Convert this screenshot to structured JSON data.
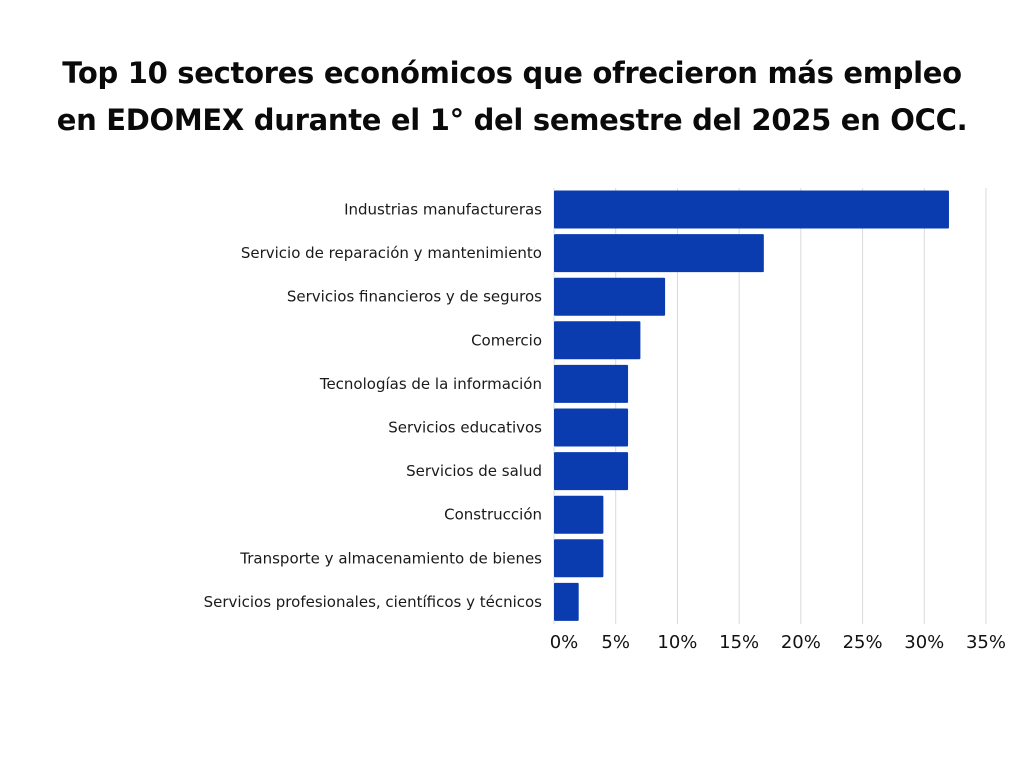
{
  "chart_data": {
    "type": "bar",
    "orientation": "horizontal",
    "title": "Top 10 sectores económicos que ofrecieron más empleo en EDOMEX durante el 1° del semestre del 2025 en OCC.",
    "title_lines": [
      "Top 10 sectores económicos que ofrecieron más empleo",
      "en EDOMEX durante el 1° del semestre del 2025 en OCC."
    ],
    "xlabel": "",
    "ylabel": "",
    "categories": [
      "Industrias manufactureras",
      "Servicio de reparación y mantenimiento",
      "Servicios financieros y de seguros",
      "Comercio",
      "Tecnologías de la información",
      "Servicios educativos",
      "Servicios de salud",
      "Construcción",
      "Transporte y almacenamiento de bienes",
      "Servicios profesionales, científicos y técnicos"
    ],
    "values": [
      32,
      17,
      9,
      7,
      6,
      6,
      6,
      4,
      4,
      2
    ],
    "xlim": [
      0,
      35
    ],
    "ticks": [
      0,
      5,
      10,
      15,
      20,
      25,
      30,
      35
    ],
    "tick_labels": [
      "0%",
      "5%",
      "10%",
      "15%",
      "20%",
      "25%",
      "30%",
      "35%"
    ],
    "grid": true,
    "legend": "none",
    "colors": {
      "bar": "#0a3cb0",
      "grid": "#d9d9d9"
    }
  }
}
